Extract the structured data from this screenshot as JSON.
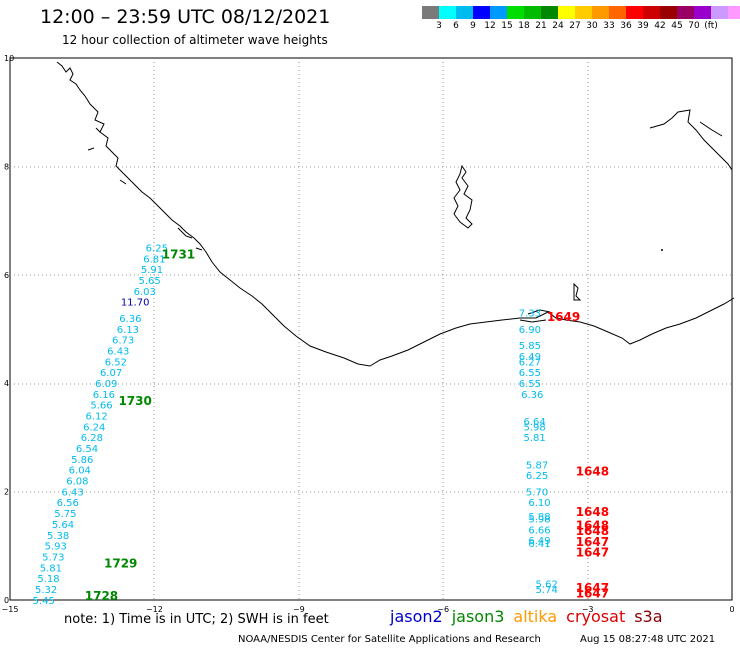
{
  "header": {
    "title": "12:00 – 23:59 UTC 08/12/2021",
    "subtitle": "12 hour collection of altimeter wave heights"
  },
  "color_scale": {
    "colors": [
      "#7a7a7a",
      "#00ffff",
      "#00bbee",
      "#0000ff",
      "#0099ff",
      "#00dd00",
      "#00bb00",
      "#008800",
      "#ffff00",
      "#ffcc00",
      "#ff9900",
      "#ff6600",
      "#ff0000",
      "#cc0000",
      "#990000",
      "#990066",
      "#9900cc",
      "#cc99ff",
      "#ff99ff",
      "#000000"
    ],
    "labels": [
      "3",
      "6",
      "9",
      "12",
      "15",
      "18",
      "21",
      "24",
      "27",
      "30",
      "33",
      "36",
      "39",
      "42",
      "45",
      "70",
      "(ft)"
    ]
  },
  "axes": {
    "x_ticks": [
      "−15",
      "−12",
      "−9",
      "−6",
      "−3",
      "0"
    ],
    "y_ticks": [
      "0",
      "2",
      "4",
      "6",
      "8",
      "10"
    ]
  },
  "time_labels": [
    {
      "text": "1731",
      "lon": -11.5,
      "lat": 6.3,
      "color": "#008800"
    },
    {
      "text": "1730",
      "lon": -12.4,
      "lat": 3.6,
      "color": "#008800"
    },
    {
      "text": "1729",
      "lon": -12.7,
      "lat": 0.6,
      "color": "#008800"
    },
    {
      "text": "1728",
      "lon": -13.1,
      "lat": 0.0,
      "color": "#008800"
    },
    {
      "text": "1648",
      "lon": -2.9,
      "lat": 2.3,
      "color": "#ff0000"
    },
    {
      "text": "1648",
      "lon": -2.9,
      "lat": 1.55,
      "color": "#ff0000"
    },
    {
      "text": "1648",
      "lon": -2.9,
      "lat": 1.3,
      "color": "#ff0000"
    },
    {
      "text": "1648",
      "lon": -2.9,
      "lat": 1.2,
      "color": "#ff0000"
    },
    {
      "text": "1647",
      "lon": -2.9,
      "lat": 1.0,
      "color": "#ff0000"
    },
    {
      "text": "1647",
      "lon": -2.9,
      "lat": 0.8,
      "color": "#ff0000"
    },
    {
      "text": "1647",
      "lon": -2.9,
      "lat": 0.15,
      "color": "#ff0000"
    },
    {
      "text": "1647",
      "lon": -2.9,
      "lat": 0.05,
      "color": "#ff0000"
    },
    {
      "text": "1649",
      "lon": -3.5,
      "lat": 5.15,
      "color": "#ff0000"
    }
  ],
  "jason3_track": [
    {
      "value": "6.25",
      "lon": -11.95,
      "lat": 6.43
    },
    {
      "value": "6.81",
      "lon": -12.0,
      "lat": 6.23
    },
    {
      "value": "5.91",
      "lon": -12.05,
      "lat": 6.03
    },
    {
      "value": "5.65",
      "lon": -12.1,
      "lat": 5.83
    },
    {
      "value": "6.03",
      "lon": -12.2,
      "lat": 5.63
    },
    {
      "value": "11.70",
      "lon": -12.4,
      "lat": 5.43,
      "color": "#0000aa"
    },
    {
      "value": "6.36",
      "lon": -12.5,
      "lat": 5.13
    },
    {
      "value": "6.13",
      "lon": -12.55,
      "lat": 4.93
    },
    {
      "value": "6.73",
      "lon": -12.65,
      "lat": 4.73
    },
    {
      "value": "6.43",
      "lon": -12.75,
      "lat": 4.53
    },
    {
      "value": "6.52",
      "lon": -12.8,
      "lat": 4.33
    },
    {
      "value": "6.07",
      "lon": -12.9,
      "lat": 4.13
    },
    {
      "value": "6.09",
      "lon": -13.0,
      "lat": 3.93
    },
    {
      "value": "6.16",
      "lon": -13.05,
      "lat": 3.73
    },
    {
      "value": "5.66",
      "lon": -13.1,
      "lat": 3.53
    },
    {
      "value": "6.12",
      "lon": -13.2,
      "lat": 3.33
    },
    {
      "value": "6.24",
      "lon": -13.25,
      "lat": 3.13
    },
    {
      "value": "6.28",
      "lon": -13.3,
      "lat": 2.93
    },
    {
      "value": "6.54",
      "lon": -13.4,
      "lat": 2.73
    },
    {
      "value": "5.86",
      "lon": -13.5,
      "lat": 2.53
    },
    {
      "value": "6.04",
      "lon": -13.55,
      "lat": 2.33
    },
    {
      "value": "6.08",
      "lon": -13.6,
      "lat": 2.13
    },
    {
      "value": "6.43",
      "lon": -13.7,
      "lat": 1.93
    },
    {
      "value": "6.56",
      "lon": -13.8,
      "lat": 1.73
    },
    {
      "value": "5.75",
      "lon": -13.85,
      "lat": 1.53
    },
    {
      "value": "5.64",
      "lon": -13.9,
      "lat": 1.33
    },
    {
      "value": "5.38",
      "lon": -14.0,
      "lat": 1.13
    },
    {
      "value": "5.93",
      "lon": -14.05,
      "lat": 0.93
    },
    {
      "value": "5.73",
      "lon": -14.1,
      "lat": 0.73
    },
    {
      "value": "5.81",
      "lon": -14.15,
      "lat": 0.53
    },
    {
      "value": "5.18",
      "lon": -14.2,
      "lat": 0.33
    },
    {
      "value": "5.32",
      "lon": -14.25,
      "lat": 0.13
    },
    {
      "value": "5.45",
      "lon": -14.3,
      "lat": -0.07
    }
  ],
  "cryosat_track": [
    {
      "value": "7.33",
      "lon": -4.2,
      "lat": 5.23
    },
    {
      "value": "6.90",
      "lon": -4.2,
      "lat": 4.93
    },
    {
      "value": "5.85",
      "lon": -4.2,
      "lat": 4.63
    },
    {
      "value": "6.49",
      "lon": -4.2,
      "lat": 4.43
    },
    {
      "value": "6.27",
      "lon": -4.2,
      "lat": 4.33
    },
    {
      "value": "6.55",
      "lon": -4.2,
      "lat": 4.13
    },
    {
      "value": "6.55",
      "lon": -4.2,
      "lat": 3.93
    },
    {
      "value": "6.36",
      "lon": -4.15,
      "lat": 3.73
    },
    {
      "value": "6.64",
      "lon": -4.1,
      "lat": 3.23
    },
    {
      "value": "5.98",
      "lon": -4.1,
      "lat": 3.13
    },
    {
      "value": "5.81",
      "lon": -4.1,
      "lat": 2.93
    },
    {
      "value": "5.87",
      "lon": -4.05,
      "lat": 2.43
    },
    {
      "value": "6.25",
      "lon": -4.05,
      "lat": 2.23
    },
    {
      "value": "5.70",
      "lon": -4.05,
      "lat": 1.93
    },
    {
      "value": "6.10",
      "lon": -4.0,
      "lat": 1.73
    },
    {
      "value": "5.88",
      "lon": -4.0,
      "lat": 1.48
    },
    {
      "value": "5.98",
      "lon": -4.0,
      "lat": 1.43
    },
    {
      "value": "6.66",
      "lon": -4.0,
      "lat": 1.23
    },
    {
      "value": "6.49",
      "lon": -4.0,
      "lat": 1.03
    },
    {
      "value": "6.41",
      "lon": -4.0,
      "lat": 0.98
    },
    {
      "value": "5.62",
      "lon": -3.85,
      "lat": 0.23
    },
    {
      "value": "5.74",
      "lon": -3.85,
      "lat": 0.13
    }
  ],
  "footer": {
    "note": "note:  1) Time is in UTC;  2) SWH is in feet",
    "credit": "NOAA/NESDIS Center for Satellite Applications and Research",
    "timestamp": "Aug 15 08:27:48 UTC 2021"
  },
  "satellites": [
    {
      "name": "jason2",
      "color": "#0000cc"
    },
    {
      "name": "jason3",
      "color": "#008800"
    },
    {
      "name": "altika",
      "color": "#ff9900"
    },
    {
      "name": "cryosat",
      "color": "#dd0000"
    },
    {
      "name": "s3a",
      "color": "#880000"
    }
  ]
}
